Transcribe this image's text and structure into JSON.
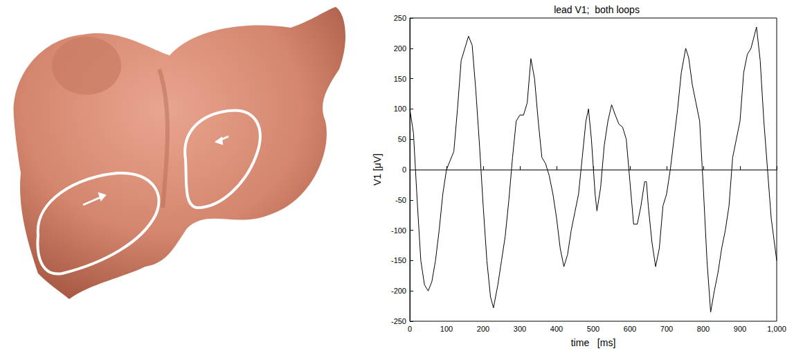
{
  "chart_data": {
    "type": "line",
    "title": "lead V1;  both loops",
    "x_label": "time   [ms]",
    "y_label": "V1 [μV]",
    "color": "#000000",
    "grid": false,
    "xlim": [
      0,
      1000
    ],
    "ylim": [
      -250,
      250
    ],
    "xticks": [
      0,
      100,
      200,
      300,
      400,
      500,
      600,
      700,
      800,
      900,
      1000
    ],
    "yticks": [
      -250,
      -200,
      -150,
      -100,
      -50,
      0,
      50,
      100,
      150,
      200,
      250
    ],
    "x": [
      0,
      10,
      20,
      30,
      40,
      50,
      60,
      70,
      80,
      90,
      100,
      110,
      120,
      130,
      140,
      150,
      160,
      170,
      180,
      190,
      200,
      210,
      220,
      228,
      240,
      250,
      260,
      270,
      280,
      290,
      300,
      310,
      320,
      330,
      340,
      350,
      360,
      370,
      380,
      390,
      400,
      410,
      420,
      430,
      440,
      450,
      460,
      470,
      480,
      487,
      495,
      505,
      510,
      520,
      530,
      540,
      550,
      560,
      570,
      580,
      590,
      600,
      610,
      620,
      630,
      640,
      645,
      650,
      660,
      670,
      680,
      690,
      700,
      710,
      720,
      730,
      740,
      752,
      760,
      770,
      780,
      790,
      800,
      810,
      820,
      830,
      840,
      850,
      860,
      870,
      880,
      890,
      900,
      910,
      920,
      930,
      945,
      955,
      965,
      975,
      985,
      1000
    ],
    "values": [
      100,
      60,
      -50,
      -150,
      -190,
      -200,
      -185,
      -150,
      -100,
      -40,
      0,
      15,
      30,
      100,
      180,
      200,
      220,
      205,
      130,
      40,
      -60,
      -150,
      -210,
      -228,
      -190,
      -150,
      -110,
      -50,
      20,
      80,
      90,
      90,
      110,
      183,
      150,
      80,
      20,
      10,
      -10,
      -40,
      -80,
      -130,
      -160,
      -140,
      -100,
      -70,
      -40,
      20,
      80,
      100,
      50,
      -40,
      -68,
      -30,
      40,
      80,
      107,
      90,
      75,
      70,
      50,
      -20,
      -90,
      -90,
      -60,
      -20,
      -20,
      -60,
      -120,
      -160,
      -130,
      -60,
      -40,
      0,
      50,
      100,
      160,
      200,
      185,
      140,
      110,
      80,
      -30,
      -150,
      -235,
      -200,
      -170,
      -130,
      -100,
      -60,
      20,
      50,
      80,
      160,
      190,
      200,
      235,
      180,
      80,
      0,
      -80,
      -150
    ]
  }
}
